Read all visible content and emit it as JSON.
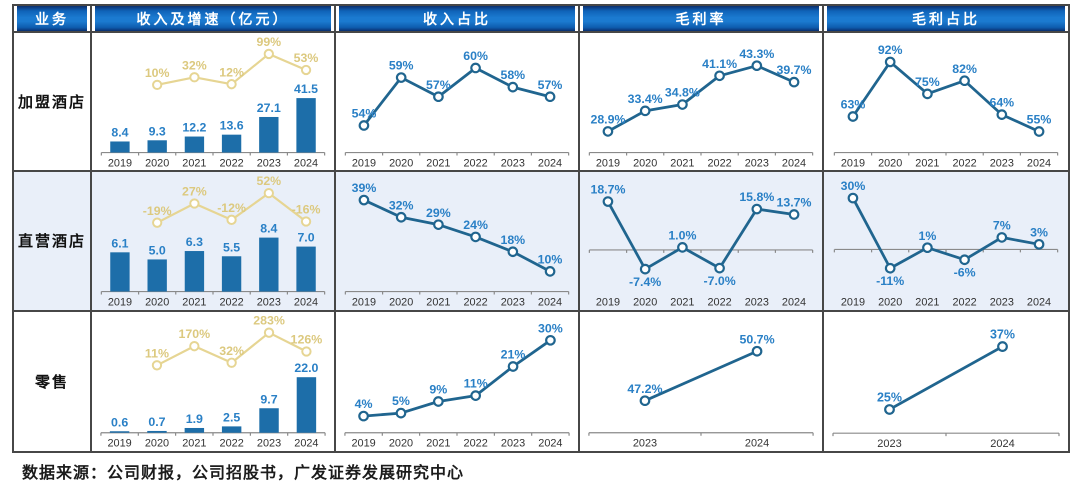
{
  "table": {
    "header": [
      "业务",
      "收入及增速（亿元）",
      "收入占比",
      "毛利率",
      "毛利占比"
    ],
    "rows": [
      "加盟酒店",
      "直营酒店",
      "零售"
    ]
  },
  "footer": {
    "source": "数据来源：公司财报，公司招股书，广发证券发展研究中心"
  },
  "colors": {
    "bar": "#1d6ea9",
    "line": "#20658f",
    "label_blue": "#2a80c6",
    "yellow": "#e6d593",
    "yellow_label": "#dcc97f",
    "axis": "#8a8a8a",
    "axis_text": "#333333",
    "header_text": "#ffffff",
    "row_alt_bg": "#e9eff9",
    "border": "#474747"
  },
  "chart_data": [
    {
      "id": "franchise-revenue-growth",
      "row": "加盟酒店",
      "column": "收入及增速（亿元）",
      "type": "bar-line",
      "categories": [
        "2019",
        "2020",
        "2021",
        "2022",
        "2023",
        "2024"
      ],
      "bars": {
        "name": "收入(亿元)",
        "values": [
          8.4,
          9.3,
          12.2,
          13.6,
          27.1,
          41.5
        ],
        "labels": [
          "8.4",
          "9.3",
          "12.2",
          "13.6",
          "27.1",
          "41.5"
        ],
        "max": 45
      },
      "growth": {
        "name": "增速",
        "values": [
          null,
          10,
          32,
          12,
          99,
          53
        ],
        "labels": [
          null,
          "10%",
          "32%",
          "12%",
          "99%",
          "53%"
        ],
        "ylim": [
          5,
          108
        ]
      }
    },
    {
      "id": "franchise-revenue-share",
      "row": "加盟酒店",
      "column": "收入占比",
      "type": "line",
      "categories": [
        "2019",
        "2020",
        "2021",
        "2022",
        "2023",
        "2024"
      ],
      "values": [
        54,
        59,
        57,
        60,
        58,
        57
      ],
      "labels": [
        "54%",
        "59%",
        "57%",
        "60%",
        "58%",
        "57%"
      ],
      "ylim": [
        52,
        62
      ],
      "zero_line": false
    },
    {
      "id": "franchise-gross-margin",
      "row": "加盟酒店",
      "column": "毛利率",
      "type": "line",
      "categories": [
        "2019",
        "2020",
        "2021",
        "2022",
        "2023",
        "2024"
      ],
      "values": [
        28.9,
        33.4,
        34.8,
        41.1,
        43.3,
        39.7
      ],
      "labels": [
        "28.9%",
        "33.4%",
        "34.8%",
        "41.1%",
        "43.3%",
        "39.7%"
      ],
      "ylim": [
        26,
        47
      ],
      "zero_line": false
    },
    {
      "id": "franchise-gross-profit-share",
      "row": "加盟酒店",
      "column": "毛利占比",
      "type": "line",
      "categories": [
        "2019",
        "2020",
        "2021",
        "2022",
        "2023",
        "2024"
      ],
      "values": [
        63,
        92,
        75,
        82,
        64,
        55
      ],
      "labels": [
        "63%",
        "92%",
        "75%",
        "82%",
        "64%",
        "55%"
      ],
      "ylim": [
        48,
        99
      ],
      "zero_line": false
    },
    {
      "id": "direct-revenue-growth",
      "row": "直营酒店",
      "column": "收入及增速（亿元）",
      "type": "bar-line",
      "categories": [
        "2019",
        "2020",
        "2021",
        "2022",
        "2023",
        "2024"
      ],
      "bars": {
        "name": "收入(亿元)",
        "values": [
          6.1,
          5.0,
          6.3,
          5.5,
          8.4,
          7.0
        ],
        "labels": [
          "6.1",
          "5.0",
          "6.3",
          "5.5",
          "8.4",
          "7.0"
        ],
        "max": 9.2
      },
      "growth": {
        "name": "增速",
        "values": [
          null,
          -19,
          27,
          -12,
          52,
          -16
        ],
        "labels": [
          null,
          "-19%",
          "27%",
          "-12%",
          "52%",
          "-16%"
        ],
        "ylim": [
          -26,
          60
        ]
      }
    },
    {
      "id": "direct-revenue-share",
      "row": "直营酒店",
      "column": "收入占比",
      "type": "line",
      "categories": [
        "2019",
        "2020",
        "2021",
        "2022",
        "2023",
        "2024"
      ],
      "values": [
        39,
        32,
        29,
        24,
        18,
        10
      ],
      "labels": [
        "39%",
        "32%",
        "29%",
        "24%",
        "18%",
        "10%"
      ],
      "ylim": [
        5,
        44
      ],
      "zero_line": false
    },
    {
      "id": "direct-gross-margin",
      "row": "直营酒店",
      "column": "毛利率",
      "type": "line",
      "categories": [
        "2019",
        "2020",
        "2021",
        "2022",
        "2023",
        "2024"
      ],
      "values": [
        18.7,
        -7.4,
        1.0,
        -7.0,
        15.8,
        13.7
      ],
      "labels": [
        "18.7%",
        "-7.4%",
        "1.0%",
        "-7.0%",
        "15.8%",
        "13.7%"
      ],
      "ylim": [
        -13,
        24
      ],
      "zero_line": true
    },
    {
      "id": "direct-gross-profit-share",
      "row": "直营酒店",
      "column": "毛利占比",
      "type": "line",
      "categories": [
        "2019",
        "2020",
        "2021",
        "2022",
        "2023",
        "2024"
      ],
      "values": [
        30,
        -11,
        1,
        -6,
        7,
        3
      ],
      "labels": [
        "30%",
        "-11%",
        "1%",
        "-6%",
        "7%",
        "3%"
      ],
      "ylim": [
        -20,
        36
      ],
      "zero_line": true
    },
    {
      "id": "retail-revenue-growth",
      "row": "零售",
      "column": "收入及增速（亿元）",
      "type": "bar-line",
      "categories": [
        "2019",
        "2020",
        "2021",
        "2022",
        "2023",
        "2024"
      ],
      "bars": {
        "name": "收入(亿元)",
        "values": [
          0.6,
          0.7,
          1.9,
          2.5,
          9.7,
          22.0
        ],
        "labels": [
          "0.6",
          "0.7",
          "1.9",
          "2.5",
          "9.7",
          "22.0"
        ],
        "max": 23.5
      },
      "growth": {
        "name": "增速",
        "values": [
          null,
          11,
          170,
          32,
          283,
          126
        ],
        "labels": [
          null,
          "11%",
          "170%",
          "32%",
          "283%",
          "126%"
        ],
        "ylim": [
          0,
          300
        ]
      }
    },
    {
      "id": "retail-revenue-share",
      "row": "零售",
      "column": "收入占比",
      "type": "line",
      "categories": [
        "2019",
        "2020",
        "2021",
        "2022",
        "2023",
        "2024"
      ],
      "values": [
        4,
        5,
        9,
        11,
        21,
        30
      ],
      "labels": [
        "4%",
        "5%",
        "9%",
        "11%",
        "21%",
        "30%"
      ],
      "ylim": [
        1,
        34
      ],
      "zero_line": false
    },
    {
      "id": "retail-gross-margin",
      "row": "零售",
      "column": "毛利率",
      "type": "line",
      "categories": [
        "2023",
        "2024"
      ],
      "values": [
        47.2,
        50.7
      ],
      "labels": [
        "47.2%",
        "50.7%"
      ],
      "ylim": [
        45.5,
        52.3
      ],
      "zero_line": false
    },
    {
      "id": "retail-gross-profit-share",
      "row": "零售",
      "column": "毛利占比",
      "type": "line",
      "categories": [
        "2023",
        "2024"
      ],
      "values": [
        25,
        37
      ],
      "labels": [
        "25%",
        "37%"
      ],
      "ylim": [
        22,
        40.5
      ],
      "zero_line": false
    }
  ]
}
